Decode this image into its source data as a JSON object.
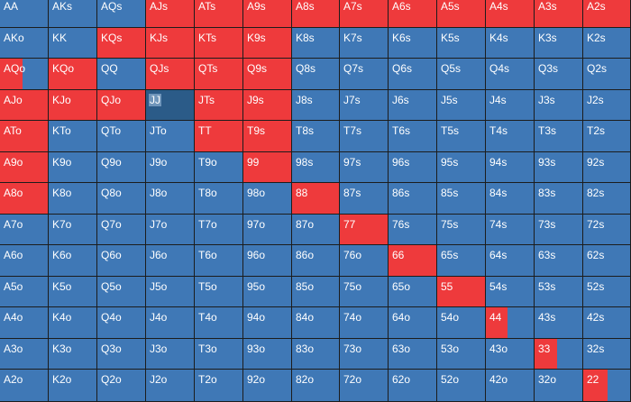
{
  "colors": {
    "blue": "#3f78b6",
    "red": "#ee3a3c",
    "selected": "#2b5b88",
    "grid_line": "#1c1c1c"
  },
  "selected_hand": "JJ",
  "rows": [
    [
      {
        "h": "AA",
        "f": 0
      },
      {
        "h": "AKs",
        "f": 0
      },
      {
        "h": "AQs",
        "f": 0
      },
      {
        "h": "AJs",
        "f": 1
      },
      {
        "h": "ATs",
        "f": 1
      },
      {
        "h": "A9s",
        "f": 1
      },
      {
        "h": "A8s",
        "f": 1
      },
      {
        "h": "A7s",
        "f": 1
      },
      {
        "h": "A6s",
        "f": 1
      },
      {
        "h": "A5s",
        "f": 1
      },
      {
        "h": "A4s",
        "f": 1
      },
      {
        "h": "A3s",
        "f": 1
      },
      {
        "h": "A2s",
        "f": 1
      }
    ],
    [
      {
        "h": "AKo",
        "f": 0
      },
      {
        "h": "KK",
        "f": 0
      },
      {
        "h": "KQs",
        "f": 1
      },
      {
        "h": "KJs",
        "f": 1
      },
      {
        "h": "KTs",
        "f": 1
      },
      {
        "h": "K9s",
        "f": 1
      },
      {
        "h": "K8s",
        "f": 0
      },
      {
        "h": "K7s",
        "f": 0
      },
      {
        "h": "K6s",
        "f": 0
      },
      {
        "h": "K5s",
        "f": 0
      },
      {
        "h": "K4s",
        "f": 0
      },
      {
        "h": "K3s",
        "f": 0
      },
      {
        "h": "K2s",
        "f": 0
      }
    ],
    [
      {
        "h": "AQo",
        "f": 0.47
      },
      {
        "h": "KQo",
        "f": 1
      },
      {
        "h": "QQ",
        "f": 0
      },
      {
        "h": "QJs",
        "f": 1
      },
      {
        "h": "QTs",
        "f": 1
      },
      {
        "h": "Q9s",
        "f": 1
      },
      {
        "h": "Q8s",
        "f": 0
      },
      {
        "h": "Q7s",
        "f": 0
      },
      {
        "h": "Q6s",
        "f": 0
      },
      {
        "h": "Q5s",
        "f": 0
      },
      {
        "h": "Q4s",
        "f": 0
      },
      {
        "h": "Q3s",
        "f": 0
      },
      {
        "h": "Q2s",
        "f": 0
      }
    ],
    [
      {
        "h": "AJo",
        "f": 1
      },
      {
        "h": "KJo",
        "f": 1
      },
      {
        "h": "QJo",
        "f": 1
      },
      {
        "h": "JJ",
        "f": 0
      },
      {
        "h": "JTs",
        "f": 1
      },
      {
        "h": "J9s",
        "f": 1
      },
      {
        "h": "J8s",
        "f": 0
      },
      {
        "h": "J7s",
        "f": 0
      },
      {
        "h": "J6s",
        "f": 0
      },
      {
        "h": "J5s",
        "f": 0
      },
      {
        "h": "J4s",
        "f": 0
      },
      {
        "h": "J3s",
        "f": 0
      },
      {
        "h": "J2s",
        "f": 0
      }
    ],
    [
      {
        "h": "ATo",
        "f": 1
      },
      {
        "h": "KTo",
        "f": 0
      },
      {
        "h": "QTo",
        "f": 0
      },
      {
        "h": "JTo",
        "f": 0
      },
      {
        "h": "TT",
        "f": 1
      },
      {
        "h": "T9s",
        "f": 1
      },
      {
        "h": "T8s",
        "f": 0
      },
      {
        "h": "T7s",
        "f": 0
      },
      {
        "h": "T6s",
        "f": 0
      },
      {
        "h": "T5s",
        "f": 0
      },
      {
        "h": "T4s",
        "f": 0
      },
      {
        "h": "T3s",
        "f": 0
      },
      {
        "h": "T2s",
        "f": 0
      }
    ],
    [
      {
        "h": "A9o",
        "f": 1
      },
      {
        "h": "K9o",
        "f": 0
      },
      {
        "h": "Q9o",
        "f": 0
      },
      {
        "h": "J9o",
        "f": 0
      },
      {
        "h": "T9o",
        "f": 0
      },
      {
        "h": "99",
        "f": 1
      },
      {
        "h": "98s",
        "f": 0
      },
      {
        "h": "97s",
        "f": 0
      },
      {
        "h": "96s",
        "f": 0
      },
      {
        "h": "95s",
        "f": 0
      },
      {
        "h": "94s",
        "f": 0
      },
      {
        "h": "93s",
        "f": 0
      },
      {
        "h": "92s",
        "f": 0
      }
    ],
    [
      {
        "h": "A8o",
        "f": 1
      },
      {
        "h": "K8o",
        "f": 0
      },
      {
        "h": "Q8o",
        "f": 0
      },
      {
        "h": "J8o",
        "f": 0
      },
      {
        "h": "T8o",
        "f": 0
      },
      {
        "h": "98o",
        "f": 0
      },
      {
        "h": "88",
        "f": 1
      },
      {
        "h": "87s",
        "f": 0
      },
      {
        "h": "86s",
        "f": 0
      },
      {
        "h": "85s",
        "f": 0
      },
      {
        "h": "84s",
        "f": 0
      },
      {
        "h": "83s",
        "f": 0
      },
      {
        "h": "82s",
        "f": 0
      }
    ],
    [
      {
        "h": "A7o",
        "f": 0
      },
      {
        "h": "K7o",
        "f": 0
      },
      {
        "h": "Q7o",
        "f": 0
      },
      {
        "h": "J7o",
        "f": 0
      },
      {
        "h": "T7o",
        "f": 0
      },
      {
        "h": "97o",
        "f": 0
      },
      {
        "h": "87o",
        "f": 0
      },
      {
        "h": "77",
        "f": 1
      },
      {
        "h": "76s",
        "f": 0
      },
      {
        "h": "75s",
        "f": 0
      },
      {
        "h": "74s",
        "f": 0
      },
      {
        "h": "73s",
        "f": 0
      },
      {
        "h": "72s",
        "f": 0
      }
    ],
    [
      {
        "h": "A6o",
        "f": 0
      },
      {
        "h": "K6o",
        "f": 0
      },
      {
        "h": "Q6o",
        "f": 0
      },
      {
        "h": "J6o",
        "f": 0
      },
      {
        "h": "T6o",
        "f": 0
      },
      {
        "h": "96o",
        "f": 0
      },
      {
        "h": "86o",
        "f": 0
      },
      {
        "h": "76o",
        "f": 0
      },
      {
        "h": "66",
        "f": 1
      },
      {
        "h": "65s",
        "f": 0
      },
      {
        "h": "64s",
        "f": 0
      },
      {
        "h": "63s",
        "f": 0
      },
      {
        "h": "62s",
        "f": 0
      }
    ],
    [
      {
        "h": "A5o",
        "f": 0
      },
      {
        "h": "K5o",
        "f": 0
      },
      {
        "h": "Q5o",
        "f": 0
      },
      {
        "h": "J5o",
        "f": 0
      },
      {
        "h": "T5o",
        "f": 0
      },
      {
        "h": "95o",
        "f": 0
      },
      {
        "h": "85o",
        "f": 0
      },
      {
        "h": "75o",
        "f": 0
      },
      {
        "h": "65o",
        "f": 0
      },
      {
        "h": "55",
        "f": 1
      },
      {
        "h": "54s",
        "f": 0
      },
      {
        "h": "53s",
        "f": 0
      },
      {
        "h": "52s",
        "f": 0
      }
    ],
    [
      {
        "h": "A4o",
        "f": 0
      },
      {
        "h": "K4o",
        "f": 0
      },
      {
        "h": "Q4o",
        "f": 0
      },
      {
        "h": "J4o",
        "f": 0
      },
      {
        "h": "T4o",
        "f": 0
      },
      {
        "h": "94o",
        "f": 0
      },
      {
        "h": "84o",
        "f": 0
      },
      {
        "h": "74o",
        "f": 0
      },
      {
        "h": "64o",
        "f": 0
      },
      {
        "h": "54o",
        "f": 0
      },
      {
        "h": "44",
        "f": 0.45
      },
      {
        "h": "43s",
        "f": 0
      },
      {
        "h": "42s",
        "f": 0
      }
    ],
    [
      {
        "h": "A3o",
        "f": 0
      },
      {
        "h": "K3o",
        "f": 0
      },
      {
        "h": "Q3o",
        "f": 0
      },
      {
        "h": "J3o",
        "f": 0
      },
      {
        "h": "T3o",
        "f": 0
      },
      {
        "h": "93o",
        "f": 0
      },
      {
        "h": "83o",
        "f": 0
      },
      {
        "h": "73o",
        "f": 0
      },
      {
        "h": "63o",
        "f": 0
      },
      {
        "h": "53o",
        "f": 0
      },
      {
        "h": "43o",
        "f": 0
      },
      {
        "h": "33",
        "f": 0.47
      },
      {
        "h": "32s",
        "f": 0
      }
    ],
    [
      {
        "h": "A2o",
        "f": 0
      },
      {
        "h": "K2o",
        "f": 0
      },
      {
        "h": "Q2o",
        "f": 0
      },
      {
        "h": "J2o",
        "f": 0
      },
      {
        "h": "T2o",
        "f": 0
      },
      {
        "h": "92o",
        "f": 0
      },
      {
        "h": "82o",
        "f": 0
      },
      {
        "h": "72o",
        "f": 0
      },
      {
        "h": "62o",
        "f": 0
      },
      {
        "h": "52o",
        "f": 0
      },
      {
        "h": "42o",
        "f": 0
      },
      {
        "h": "32o",
        "f": 0
      },
      {
        "h": "22",
        "f": 0.52
      }
    ]
  ]
}
